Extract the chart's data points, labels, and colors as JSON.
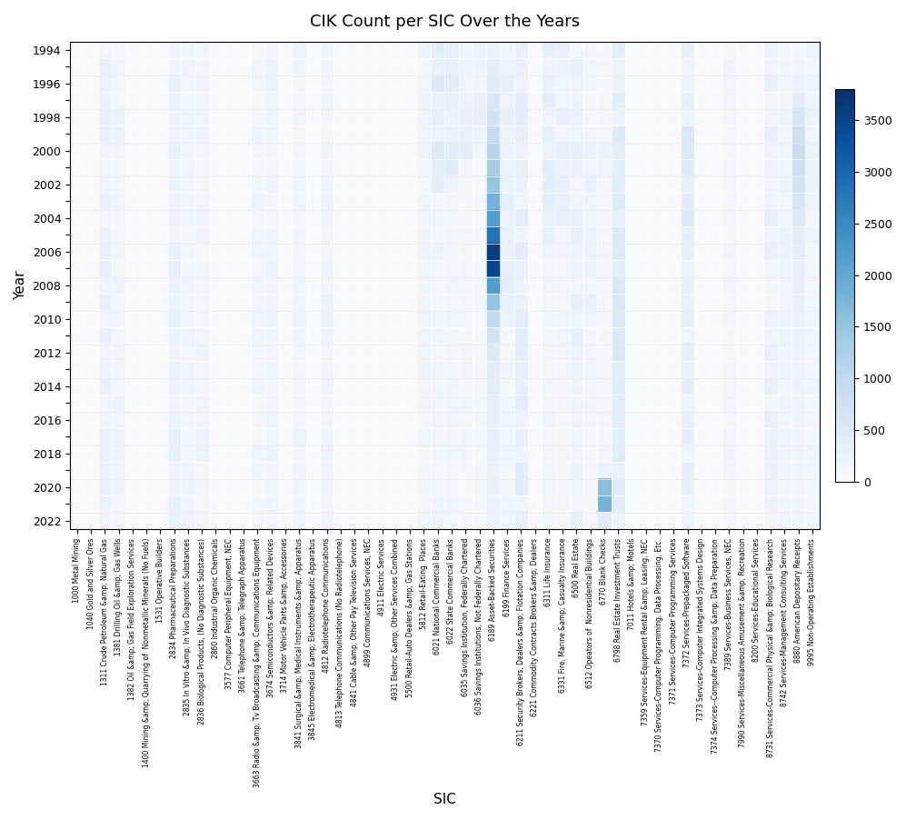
{
  "title": "CIK Count per SIC Over the Years",
  "xlabel": "SIC",
  "ylabel": "Year",
  "years": [
    1994,
    1995,
    1996,
    1997,
    1998,
    1999,
    2000,
    2001,
    2002,
    2003,
    2004,
    2005,
    2006,
    2007,
    2008,
    2009,
    2010,
    2011,
    2012,
    2013,
    2014,
    2015,
    2016,
    2017,
    2018,
    2019,
    2020,
    2021,
    2022
  ],
  "sic_labels": [
    "1000 Metal Mining",
    "1040 Gold and Silver Ores",
    "1311 Crude Petroleum &amp; Natural Gas",
    "1381 Drilling Oil &amp; Gas Wells",
    "1382 Oil &amp; Gas Field Exploration Services",
    "1400 Mining &amp; Quarrying of  Nonmetallic Minerals (No Fuels)",
    "1531 Operative Builders",
    "2834 Pharmaceutical Preparations",
    "2835 In Vitro &amp; In Vivo Diagnostic Substances",
    "2836 Biological Products, (No Diagnostic Substances)",
    "2860 Industrial Organic Chemicals",
    "3577 Computer Peripheral Equipment, NEC",
    "3661 Telephone &amp; Telegraph Apparatus",
    "3663 Radio &amp; Tv Broadcasting &amp; Communications Equipment",
    "3674 Semiconductors &amp; Related Devices",
    "3714 Motor Vehicle Parts &amp; Accessories",
    "3841 Surgical &amp; Medical Instruments &amp; Apparatus",
    "3845 Electromedical &amp; Electrotherapeutic Apparatus",
    "4812 Radiotelephone Communications",
    "4813 Telephone Communications (No Radiotelephone)",
    "4841 Cable &amp; Other Pay Television Services",
    "4899 Communications Services, NEC",
    "4911 Electric Services",
    "4931 Electric &amp; Other Services Combined",
    "5500 Retail-Auto Dealers &amp; Gas Stations",
    "5812 Retail-Eating  Places",
    "6021 National Commercial Banks",
    "6022 State Commercial Banks",
    "6035 Savings Institution, Federally Chartered",
    "6036 Savings Institutions, Not Federally Chartered",
    "6189 Asset-Backed Securities",
    "6199 Finance Services",
    "6211 Security Brokers, Dealers &amp; Flotation Companies",
    "6221 Commodity Contracts Brokers &amp; Dealers",
    "6311 Life Insurance",
    "6331 Fire, Marine &amp; Casualty Insurance",
    "6500 Real Estate",
    "6512 Opeators of  Nonresidential Buildings",
    "6770 Blank Checks",
    "6798 Real Estate Investment Trusts",
    "7011 Hotels &amp; Motels",
    "7359 Services-Equipment Rental &amp; Leasing, NEC",
    "7370 Services-Computer Programming, Data Processing, Etc.",
    "7371 Services-Computer Programming Services",
    "7372 Services-Prepackaged Software",
    "7373 Services-Computer Integrated Systems Design",
    "7374 Services--Computer Processing &amp; Data Preparation",
    "7389 Services-Business Services, NEC",
    "7990 Services-Miscellaneous Amusement &amp; Recreation",
    "8200 Services-Educational Services",
    "8731 Services-Commercial Physical &amp; Biological Research",
    "8742 Services-Management Consulting Services",
    "8880 American Depositary Receipts",
    "9995 Non-Operating Establishments"
  ],
  "colormap": "Blues",
  "vmin": 0,
  "vmax": 3800,
  "colorbar_ticks": [
    0,
    500,
    1000,
    1500,
    2000,
    2500,
    3000,
    3500
  ],
  "background_color": "#ffffff",
  "cell_base_color": 120,
  "figsize": [
    9.97,
    9.02
  ],
  "dpi": 100
}
